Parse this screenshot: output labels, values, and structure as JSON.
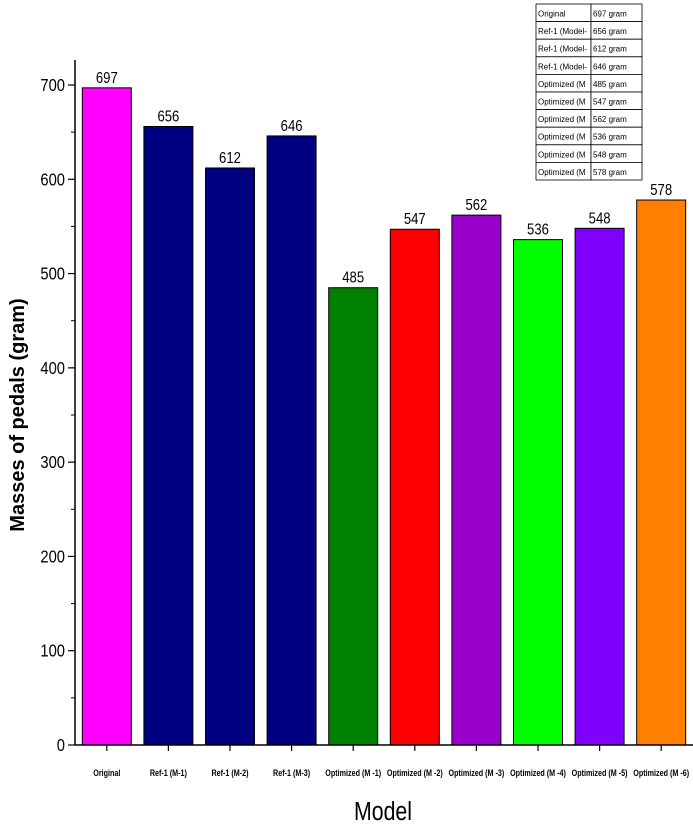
{
  "chart_data": {
    "type": "bar",
    "title": "",
    "xlabel": "Model",
    "ylabel": "Masses of pedals (gram)",
    "ylim": [
      0,
      700
    ],
    "yticks": [
      0,
      100,
      200,
      300,
      400,
      500,
      600,
      700
    ],
    "categories": [
      "Original",
      "Ref-1 (M-1)",
      "Ref-1 (M-2)",
      "Ref-1 (M-3)",
      "Optimized (M -1)",
      "Optimized (M -2)",
      "Optimized (M -3)",
      "Optimized (M -4)",
      "Optimized (M -5)",
      "Optimized (M -6)"
    ],
    "values": [
      697,
      656,
      612,
      646,
      485,
      547,
      562,
      536,
      548,
      578
    ],
    "colors": [
      "#ff00ff",
      "#000080",
      "#000080",
      "#000080",
      "#008000",
      "#ff0000",
      "#9900cc",
      "#00ff00",
      "#8000ff",
      "#ff8000"
    ],
    "legend": {
      "position": "top-right",
      "rows": [
        {
          "name": "Original",
          "value": "697 gram"
        },
        {
          "name": "Ref-1 (Model-",
          "value": "656 gram"
        },
        {
          "name": "Ref-1 (Model-",
          "value": "612 gram"
        },
        {
          "name": "Ref-1 (Model-",
          "value": "646 gram"
        },
        {
          "name": "Optimized (M",
          "value": "485 gram"
        },
        {
          "name": "Optimized (M",
          "value": "547 gram"
        },
        {
          "name": "Optimized (M",
          "value": "562 gram"
        },
        {
          "name": "Optimized (M",
          "value": "536 gram"
        },
        {
          "name": "Optimized (M",
          "value": "548 gram"
        },
        {
          "name": "Optimized (M",
          "value": "578 gram"
        }
      ]
    }
  }
}
